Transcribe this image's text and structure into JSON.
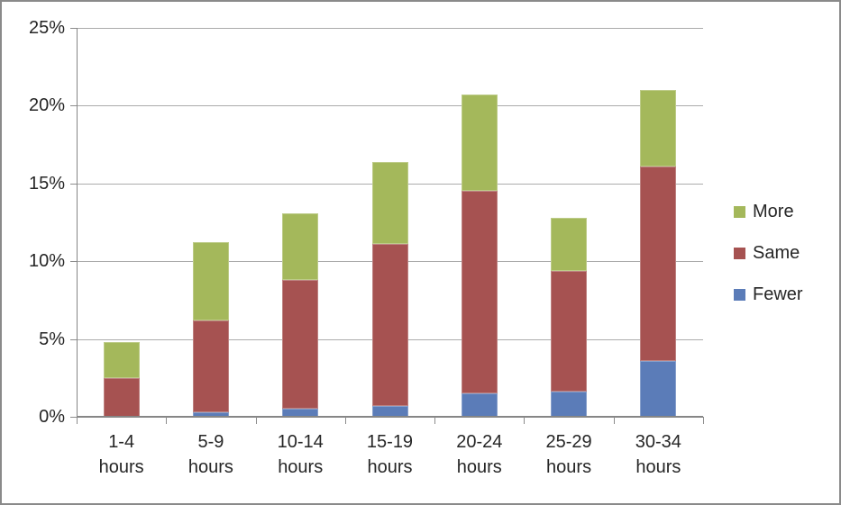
{
  "window": {
    "border_color": "#8a8a8a",
    "background": "#ffffff"
  },
  "colors": {
    "grid": "#ababab",
    "axis": "#868686",
    "text": "#262626"
  },
  "chart_data": {
    "type": "bar",
    "stacked": true,
    "title": "",
    "xlabel": "",
    "ylabel": "",
    "grid": true,
    "categories": [
      "1-4 hours",
      "5-9 hours",
      "10-14 hours",
      "15-19 hours",
      "20-24 hours",
      "25-29 hours",
      "30-34 hours"
    ],
    "series": [
      {
        "name": "More",
        "color": "#a4b85b",
        "values": [
          2.3,
          5.0,
          4.3,
          5.3,
          6.2,
          3.4,
          4.9
        ]
      },
      {
        "name": "Same",
        "color": "#a65251",
        "values": [
          2.5,
          5.9,
          8.3,
          10.4,
          13.0,
          7.8,
          12.5
        ]
      },
      {
        "name": "Fewer",
        "color": "#5b7cb8",
        "values": [
          0,
          0.3,
          0.5,
          0.7,
          1.5,
          1.6,
          3.6
        ]
      }
    ],
    "stack_order_bottom_to_top": [
      "Fewer",
      "Same",
      "More"
    ],
    "stack_totals": [
      4.8,
      11.2,
      13.1,
      16.4,
      20.7,
      12.8,
      21.0
    ],
    "y_axis": {
      "min": 0,
      "max": 25,
      "tick_step": 5,
      "tick_labels": [
        "0%",
        "5%",
        "10%",
        "15%",
        "20%",
        "25%"
      ]
    },
    "legend": {
      "position": "right",
      "order_top_to_bottom": [
        "More",
        "Same",
        "Fewer"
      ]
    }
  }
}
